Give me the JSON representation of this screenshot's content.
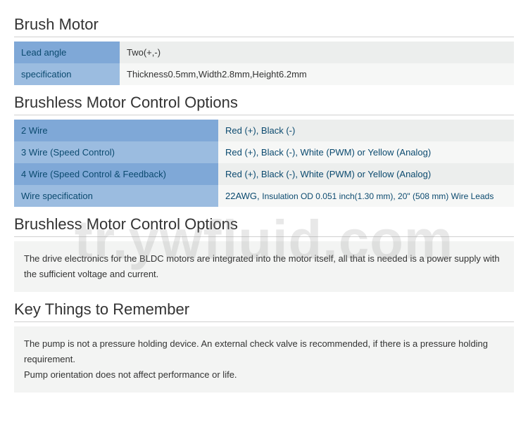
{
  "colors": {
    "label_odd": "#7fa8d7",
    "label_even": "#9bbce0",
    "val_odd": "#eceeed",
    "val_even": "#f6f7f6",
    "text_blue": "#0b4a6f",
    "text_dark": "#333333",
    "info_bg": "#f3f4f3",
    "rule": "#d0d0d0"
  },
  "section1": {
    "title": "Brush Motor",
    "rows": [
      {
        "label": "Lead angle",
        "value": "Two(+,-)"
      },
      {
        "label": "specification",
        "value": "Thickness0.5mm,Width2.8mm,Height6.2mm"
      }
    ]
  },
  "section2": {
    "title": "Brushless Motor Control Options",
    "rows": [
      {
        "label": "2 Wire",
        "value": "Red (+), Black (-)"
      },
      {
        "label": "3 Wire (Speed Control)",
        "value": "Red (+), Black (-), White (PWM) or Yellow (Analog)"
      },
      {
        "label": "4 Wire (Speed Control & Feedback)",
        "value": "Red (+), Black (-), White (PWM) or Yellow (Analog)"
      },
      {
        "label": "Wire specification",
        "value_prefix": "22AWG, ",
        "value_suffix": "Insulation OD 0.051 inch(1.30 mm), 20\" (508 mm) Wire Leads"
      }
    ]
  },
  "section3": {
    "title": "Brushless Motor Control Options",
    "body": "The drive electronics for the BLDC motors are integrated into the motor itself, all that is needed is a power supply with the sufficient voltage and current."
  },
  "section4": {
    "title": "Key Things to Remember",
    "body_line1": "The pump is not a pressure holding device. An external check valve is recommended, if there is a pressure holding requirement.",
    "body_line2": "Pump orientation does not affect performance or life."
  },
  "watermark": "tr.ywfluid.com"
}
